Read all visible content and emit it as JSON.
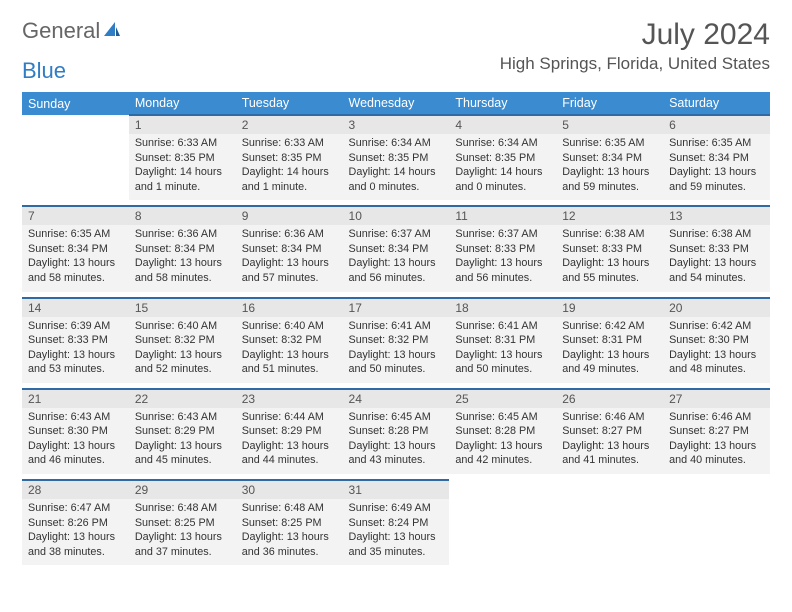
{
  "logo": {
    "text1": "General",
    "text2": "Blue"
  },
  "title": "July 2024",
  "location": "High Springs, Florida, United States",
  "colors": {
    "header_bg": "#3a8bd0",
    "header_text": "#ffffff",
    "daynum_bg": "#e7e7e7",
    "cell_bg": "#f3f3f3",
    "border": "#2f6aa5",
    "logo_blue": "#2f7dc4",
    "text": "#333333"
  },
  "day_names": [
    "Sunday",
    "Monday",
    "Tuesday",
    "Wednesday",
    "Thursday",
    "Friday",
    "Saturday"
  ],
  "weeks": [
    [
      null,
      {
        "n": "1",
        "sr": "Sunrise: 6:33 AM",
        "ss": "Sunset: 8:35 PM",
        "d1": "Daylight: 14 hours",
        "d2": "and 1 minute."
      },
      {
        "n": "2",
        "sr": "Sunrise: 6:33 AM",
        "ss": "Sunset: 8:35 PM",
        "d1": "Daylight: 14 hours",
        "d2": "and 1 minute."
      },
      {
        "n": "3",
        "sr": "Sunrise: 6:34 AM",
        "ss": "Sunset: 8:35 PM",
        "d1": "Daylight: 14 hours",
        "d2": "and 0 minutes."
      },
      {
        "n": "4",
        "sr": "Sunrise: 6:34 AM",
        "ss": "Sunset: 8:35 PM",
        "d1": "Daylight: 14 hours",
        "d2": "and 0 minutes."
      },
      {
        "n": "5",
        "sr": "Sunrise: 6:35 AM",
        "ss": "Sunset: 8:34 PM",
        "d1": "Daylight: 13 hours",
        "d2": "and 59 minutes."
      },
      {
        "n": "6",
        "sr": "Sunrise: 6:35 AM",
        "ss": "Sunset: 8:34 PM",
        "d1": "Daylight: 13 hours",
        "d2": "and 59 minutes."
      }
    ],
    [
      {
        "n": "7",
        "sr": "Sunrise: 6:35 AM",
        "ss": "Sunset: 8:34 PM",
        "d1": "Daylight: 13 hours",
        "d2": "and 58 minutes."
      },
      {
        "n": "8",
        "sr": "Sunrise: 6:36 AM",
        "ss": "Sunset: 8:34 PM",
        "d1": "Daylight: 13 hours",
        "d2": "and 58 minutes."
      },
      {
        "n": "9",
        "sr": "Sunrise: 6:36 AM",
        "ss": "Sunset: 8:34 PM",
        "d1": "Daylight: 13 hours",
        "d2": "and 57 minutes."
      },
      {
        "n": "10",
        "sr": "Sunrise: 6:37 AM",
        "ss": "Sunset: 8:34 PM",
        "d1": "Daylight: 13 hours",
        "d2": "and 56 minutes."
      },
      {
        "n": "11",
        "sr": "Sunrise: 6:37 AM",
        "ss": "Sunset: 8:33 PM",
        "d1": "Daylight: 13 hours",
        "d2": "and 56 minutes."
      },
      {
        "n": "12",
        "sr": "Sunrise: 6:38 AM",
        "ss": "Sunset: 8:33 PM",
        "d1": "Daylight: 13 hours",
        "d2": "and 55 minutes."
      },
      {
        "n": "13",
        "sr": "Sunrise: 6:38 AM",
        "ss": "Sunset: 8:33 PM",
        "d1": "Daylight: 13 hours",
        "d2": "and 54 minutes."
      }
    ],
    [
      {
        "n": "14",
        "sr": "Sunrise: 6:39 AM",
        "ss": "Sunset: 8:33 PM",
        "d1": "Daylight: 13 hours",
        "d2": "and 53 minutes."
      },
      {
        "n": "15",
        "sr": "Sunrise: 6:40 AM",
        "ss": "Sunset: 8:32 PM",
        "d1": "Daylight: 13 hours",
        "d2": "and 52 minutes."
      },
      {
        "n": "16",
        "sr": "Sunrise: 6:40 AM",
        "ss": "Sunset: 8:32 PM",
        "d1": "Daylight: 13 hours",
        "d2": "and 51 minutes."
      },
      {
        "n": "17",
        "sr": "Sunrise: 6:41 AM",
        "ss": "Sunset: 8:32 PM",
        "d1": "Daylight: 13 hours",
        "d2": "and 50 minutes."
      },
      {
        "n": "18",
        "sr": "Sunrise: 6:41 AM",
        "ss": "Sunset: 8:31 PM",
        "d1": "Daylight: 13 hours",
        "d2": "and 50 minutes."
      },
      {
        "n": "19",
        "sr": "Sunrise: 6:42 AM",
        "ss": "Sunset: 8:31 PM",
        "d1": "Daylight: 13 hours",
        "d2": "and 49 minutes."
      },
      {
        "n": "20",
        "sr": "Sunrise: 6:42 AM",
        "ss": "Sunset: 8:30 PM",
        "d1": "Daylight: 13 hours",
        "d2": "and 48 minutes."
      }
    ],
    [
      {
        "n": "21",
        "sr": "Sunrise: 6:43 AM",
        "ss": "Sunset: 8:30 PM",
        "d1": "Daylight: 13 hours",
        "d2": "and 46 minutes."
      },
      {
        "n": "22",
        "sr": "Sunrise: 6:43 AM",
        "ss": "Sunset: 8:29 PM",
        "d1": "Daylight: 13 hours",
        "d2": "and 45 minutes."
      },
      {
        "n": "23",
        "sr": "Sunrise: 6:44 AM",
        "ss": "Sunset: 8:29 PM",
        "d1": "Daylight: 13 hours",
        "d2": "and 44 minutes."
      },
      {
        "n": "24",
        "sr": "Sunrise: 6:45 AM",
        "ss": "Sunset: 8:28 PM",
        "d1": "Daylight: 13 hours",
        "d2": "and 43 minutes."
      },
      {
        "n": "25",
        "sr": "Sunrise: 6:45 AM",
        "ss": "Sunset: 8:28 PM",
        "d1": "Daylight: 13 hours",
        "d2": "and 42 minutes."
      },
      {
        "n": "26",
        "sr": "Sunrise: 6:46 AM",
        "ss": "Sunset: 8:27 PM",
        "d1": "Daylight: 13 hours",
        "d2": "and 41 minutes."
      },
      {
        "n": "27",
        "sr": "Sunrise: 6:46 AM",
        "ss": "Sunset: 8:27 PM",
        "d1": "Daylight: 13 hours",
        "d2": "and 40 minutes."
      }
    ],
    [
      {
        "n": "28",
        "sr": "Sunrise: 6:47 AM",
        "ss": "Sunset: 8:26 PM",
        "d1": "Daylight: 13 hours",
        "d2": "and 38 minutes."
      },
      {
        "n": "29",
        "sr": "Sunrise: 6:48 AM",
        "ss": "Sunset: 8:25 PM",
        "d1": "Daylight: 13 hours",
        "d2": "and 37 minutes."
      },
      {
        "n": "30",
        "sr": "Sunrise: 6:48 AM",
        "ss": "Sunset: 8:25 PM",
        "d1": "Daylight: 13 hours",
        "d2": "and 36 minutes."
      },
      {
        "n": "31",
        "sr": "Sunrise: 6:49 AM",
        "ss": "Sunset: 8:24 PM",
        "d1": "Daylight: 13 hours",
        "d2": "and 35 minutes."
      },
      null,
      null,
      null
    ]
  ]
}
